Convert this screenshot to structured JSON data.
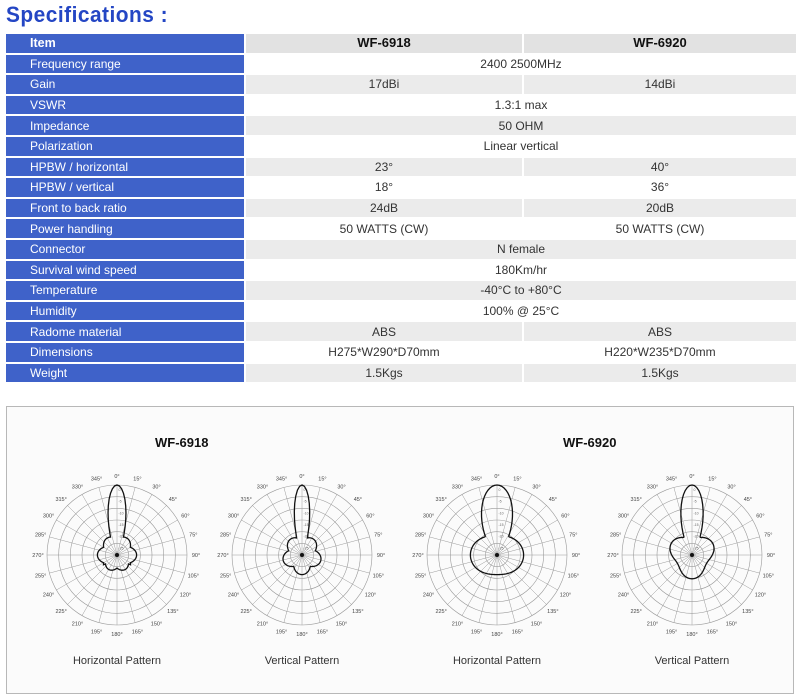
{
  "title": "Specifications :",
  "table": {
    "header": {
      "item": "Item",
      "model1": "WF-6918",
      "model2": "WF-6920"
    },
    "rows": [
      {
        "label": "Frequency range",
        "v1": "2400  2500MHz",
        "span": true
      },
      {
        "label": "Gain",
        "v1": "17dBi",
        "v2": "14dBi",
        "span": false
      },
      {
        "label": "VSWR",
        "v1": "1.3:1 max",
        "span": true
      },
      {
        "label": "Impedance",
        "v1": "50 OHM",
        "span": true
      },
      {
        "label": "Polarization",
        "v1": "Linear vertical",
        "span": true
      },
      {
        "label": "HPBW / horizontal",
        "v1": "23°",
        "v2": "40°",
        "span": false
      },
      {
        "label": "HPBW / vertical",
        "v1": "18°",
        "v2": "36°",
        "span": false
      },
      {
        "label": "Front to back ratio",
        "v1": "24dB",
        "v2": "20dB",
        "span": false
      },
      {
        "label": "Power handling",
        "v1": "50 WATTS (CW)",
        "v2": "50 WATTS (CW)",
        "span": false
      },
      {
        "label": "Connector",
        "v1": "N female",
        "span": true
      },
      {
        "label": "Survival wind speed",
        "v1": "180Km/hr",
        "span": true
      },
      {
        "label": "Temperature",
        "v1": "-40°C to +80°C",
        "span": true
      },
      {
        "label": "Humidity",
        "v1": "100% @ 25°C",
        "span": true
      },
      {
        "label": "Radome material",
        "v1": "ABS",
        "v2": "ABS",
        "span": false
      },
      {
        "label": "Dimensions",
        "v1": "H275*W290*D70mm",
        "v2": "H220*W235*D70mm",
        "span": false
      },
      {
        "label": "Weight",
        "v1": "1.5Kgs",
        "v2": "1.5Kgs",
        "span": false
      }
    ]
  },
  "patterns": {
    "models": [
      "WF-6918",
      "WF-6920"
    ],
    "captions": [
      "Horizontal Pattern",
      "Vertical Pattern",
      "Horizontal Pattern",
      "Vertical Pattern"
    ],
    "angle_labels": [
      "0°",
      "15°",
      "30°",
      "45°",
      "60°",
      "75°",
      "90°",
      "105°",
      "120°",
      "135°",
      "150°",
      "165°",
      "180°",
      "195°",
      "210°",
      "225°",
      "240°",
      "255°",
      "270°",
      "285°",
      "300°",
      "315°",
      "330°",
      "345°"
    ],
    "colors": {
      "grid": "#9a9a9a",
      "trace": "#111111",
      "accent": "#3f62c9"
    }
  }
}
